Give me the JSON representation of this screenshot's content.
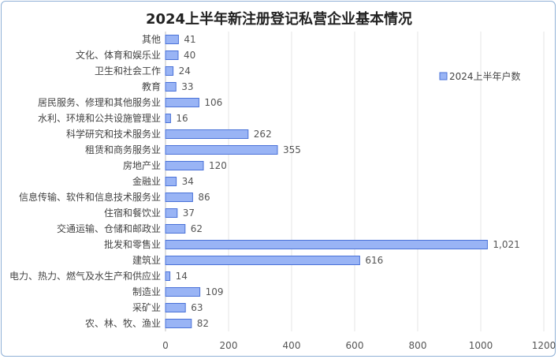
{
  "chart_data": {
    "type": "bar",
    "orientation": "horizontal",
    "title": "2024上半年新注册登记私营企业基本情况",
    "categories": [
      "其他",
      "文化、体育和娱乐业",
      "卫生和社会工作",
      "教育",
      "居民服务、修理和其他服务业",
      "水利、环境和公共设施管理业",
      "科学研究和技术服务业",
      "租赁和商务服务业",
      "房地产业",
      "金融业",
      "信息传输、软件和信息技术服务业",
      "住宿和餐饮业",
      "交通运输、仓储和邮政业",
      "批发和零售业",
      "建筑业",
      "电力、热力、燃气及水生产和供应业",
      "制造业",
      "采矿业",
      "农、林、牧、渔业"
    ],
    "series": [
      {
        "name": "2024上半年户数",
        "values": [
          41,
          40,
          24,
          33,
          106,
          16,
          262,
          355,
          120,
          34,
          86,
          37,
          62,
          1021,
          616,
          14,
          109,
          63,
          82
        ]
      }
    ],
    "data_labels": [
      "41",
      "40",
      "24",
      "33",
      "106",
      "16",
      "262",
      "355",
      "120",
      "34",
      "86",
      "37",
      "62",
      "1,021",
      "616",
      "14",
      "109",
      "63",
      "82"
    ],
    "xlim": [
      0,
      1200
    ],
    "xticks": [
      0,
      200,
      400,
      600,
      800,
      1000,
      1200
    ],
    "grid": "vertical",
    "legend_position": "right",
    "colors": {
      "bar_fill": "#99b4f5",
      "bar_stroke": "#4a72d8",
      "grid": "#e6e6e6",
      "axis": "#bfbfbf"
    }
  }
}
